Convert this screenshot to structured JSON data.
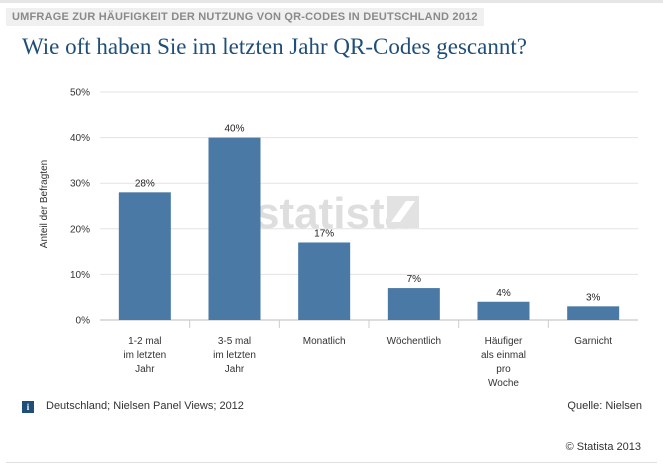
{
  "header": {
    "supertitle": "UMFRAGE ZUR HÄUFIGKEIT DER NUTZUNG VON QR-CODES IN DEUTSCHLAND 2012",
    "title": "Wie oft haben Sie im letzten Jahr QR-Codes gescannt?"
  },
  "chart_data": {
    "type": "bar",
    "categories": [
      [
        "1-2 mal",
        "im letzten",
        "Jahr"
      ],
      [
        "3-5 mal",
        "im letzten",
        "Jahr"
      ],
      [
        "Monatlich"
      ],
      [
        "Wöchentlich"
      ],
      [
        "Häufiger",
        "als einmal",
        "pro",
        "Woche"
      ],
      [
        "Garnicht"
      ]
    ],
    "values": [
      28,
      40,
      17,
      7,
      4,
      3
    ],
    "value_labels": [
      "28%",
      "40%",
      "17%",
      "7%",
      "4%",
      "3%"
    ],
    "ylabel": "Anteil der Befragten",
    "ylim": [
      0,
      50
    ],
    "yticks": [
      0,
      10,
      20,
      30,
      40,
      50
    ],
    "ytick_labels": [
      "0%",
      "10%",
      "20%",
      "30%",
      "40%",
      "50%"
    ],
    "grid": true,
    "bar_color": "#4a79a5",
    "watermark": "statista"
  },
  "footer": {
    "info_icon": "i",
    "note": "Deutschland; Nielsen Panel Views; 2012",
    "source": "Quelle: Nielsen",
    "copyright": "© Statista 2013"
  }
}
